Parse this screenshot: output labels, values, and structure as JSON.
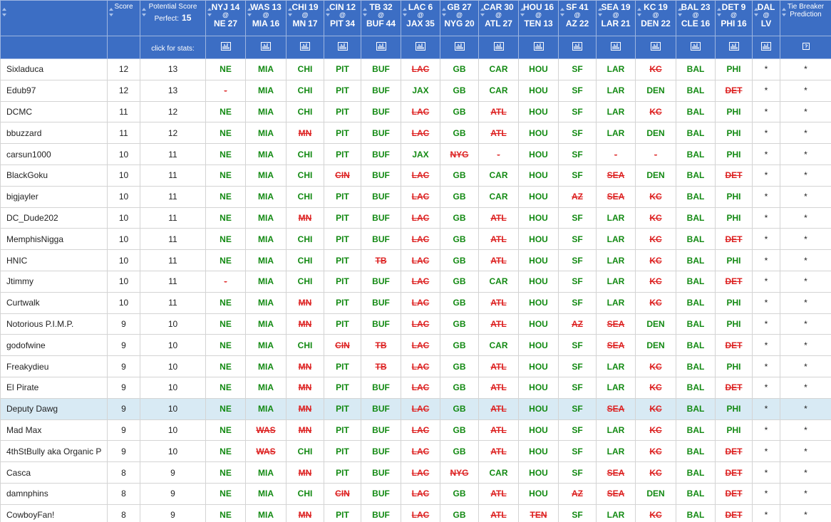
{
  "header": {
    "score_label": "Score",
    "potential_label": "Potential Score",
    "perfect_label": "Perfect:",
    "perfect_value": 15,
    "tiebreaker_label": "Tie Breaker Prediction",
    "stats_label": "click for stats:",
    "at_symbol": "@"
  },
  "games": [
    {
      "away": "NYJ",
      "away_score": 14,
      "home": "NE",
      "home_score": 27
    },
    {
      "away": "WAS",
      "away_score": 13,
      "home": "MIA",
      "home_score": 16
    },
    {
      "away": "CHI",
      "away_score": 19,
      "home": "MN",
      "home_score": 17
    },
    {
      "away": "CIN",
      "away_score": 12,
      "home": "PIT",
      "home_score": 34
    },
    {
      "away": "TB",
      "away_score": 32,
      "home": "BUF",
      "home_score": 44
    },
    {
      "away": "LAC",
      "away_score": 6,
      "home": "JAX",
      "home_score": 35
    },
    {
      "away": "GB",
      "away_score": 27,
      "home": "NYG",
      "home_score": 20
    },
    {
      "away": "CAR",
      "away_score": 30,
      "home": "ATL",
      "home_score": 27
    },
    {
      "away": "HOU",
      "away_score": 16,
      "home": "TEN",
      "home_score": 13
    },
    {
      "away": "SF",
      "away_score": 41,
      "home": "AZ",
      "home_score": 22
    },
    {
      "away": "SEA",
      "away_score": 19,
      "home": "LAR",
      "home_score": 21
    },
    {
      "away": "KC",
      "away_score": 19,
      "home": "DEN",
      "home_score": 22
    },
    {
      "away": "BAL",
      "away_score": 23,
      "home": "CLE",
      "home_score": 16
    },
    {
      "away": "DET",
      "away_score": 9,
      "home": "PHI",
      "home_score": 16
    },
    {
      "away": "DAL",
      "home": "LV"
    }
  ],
  "rows": [
    {
      "name": "Sixladuca",
      "score": 12,
      "potential": 13,
      "picks": [
        "NE",
        "MIA",
        "CHI",
        "PIT",
        "BUF",
        "LAC",
        "GB",
        "CAR",
        "HOU",
        "SF",
        "LAR",
        "KC",
        "BAL",
        "PHI",
        "*"
      ],
      "tiebreaker": "*"
    },
    {
      "name": "Edub97",
      "score": 12,
      "potential": 13,
      "picks": [
        "-",
        "MIA",
        "CHI",
        "PIT",
        "BUF",
        "JAX",
        "GB",
        "CAR",
        "HOU",
        "SF",
        "LAR",
        "DEN",
        "BAL",
        "DET",
        "*"
      ],
      "tiebreaker": "*"
    },
    {
      "name": "DCMC",
      "score": 11,
      "potential": 12,
      "picks": [
        "NE",
        "MIA",
        "CHI",
        "PIT",
        "BUF",
        "LAC",
        "GB",
        "ATL",
        "HOU",
        "SF",
        "LAR",
        "KC",
        "BAL",
        "PHI",
        "*"
      ],
      "tiebreaker": "*"
    },
    {
      "name": "bbuzzard",
      "score": 11,
      "potential": 12,
      "picks": [
        "NE",
        "MIA",
        "MN",
        "PIT",
        "BUF",
        "LAC",
        "GB",
        "ATL",
        "HOU",
        "SF",
        "LAR",
        "DEN",
        "BAL",
        "PHI",
        "*"
      ],
      "tiebreaker": "*"
    },
    {
      "name": "carsun1000",
      "score": 10,
      "potential": 11,
      "picks": [
        "NE",
        "MIA",
        "CHI",
        "PIT",
        "BUF",
        "JAX",
        "NYG",
        "-",
        "HOU",
        "SF",
        "-",
        "-",
        "BAL",
        "PHI",
        "*"
      ],
      "tiebreaker": "*"
    },
    {
      "name": "BlackGoku",
      "score": 10,
      "potential": 11,
      "picks": [
        "NE",
        "MIA",
        "CHI",
        "CIN",
        "BUF",
        "LAC",
        "GB",
        "CAR",
        "HOU",
        "SF",
        "SEA",
        "DEN",
        "BAL",
        "DET",
        "*"
      ],
      "tiebreaker": "*"
    },
    {
      "name": "bigjayler",
      "score": 10,
      "potential": 11,
      "picks": [
        "NE",
        "MIA",
        "CHI",
        "PIT",
        "BUF",
        "LAC",
        "GB",
        "CAR",
        "HOU",
        "AZ",
        "SEA",
        "KC",
        "BAL",
        "PHI",
        "*"
      ],
      "tiebreaker": "*"
    },
    {
      "name": "DC_Dude202",
      "score": 10,
      "potential": 11,
      "picks": [
        "NE",
        "MIA",
        "MN",
        "PIT",
        "BUF",
        "LAC",
        "GB",
        "ATL",
        "HOU",
        "SF",
        "LAR",
        "KC",
        "BAL",
        "PHI",
        "*"
      ],
      "tiebreaker": "*"
    },
    {
      "name": "MemphisNigga",
      "score": 10,
      "potential": 11,
      "picks": [
        "NE",
        "MIA",
        "CHI",
        "PIT",
        "BUF",
        "LAC",
        "GB",
        "ATL",
        "HOU",
        "SF",
        "LAR",
        "KC",
        "BAL",
        "DET",
        "*"
      ],
      "tiebreaker": "*"
    },
    {
      "name": "HNIC",
      "score": 10,
      "potential": 11,
      "picks": [
        "NE",
        "MIA",
        "CHI",
        "PIT",
        "TB",
        "LAC",
        "GB",
        "ATL",
        "HOU",
        "SF",
        "LAR",
        "KC",
        "BAL",
        "PHI",
        "*"
      ],
      "tiebreaker": "*"
    },
    {
      "name": "Jtimmy",
      "score": 10,
      "potential": 11,
      "picks": [
        "-",
        "MIA",
        "CHI",
        "PIT",
        "BUF",
        "LAC",
        "GB",
        "CAR",
        "HOU",
        "SF",
        "LAR",
        "KC",
        "BAL",
        "DET",
        "*"
      ],
      "tiebreaker": "*"
    },
    {
      "name": "Curtwalk",
      "score": 10,
      "potential": 11,
      "picks": [
        "NE",
        "MIA",
        "MN",
        "PIT",
        "BUF",
        "LAC",
        "GB",
        "ATL",
        "HOU",
        "SF",
        "LAR",
        "KC",
        "BAL",
        "PHI",
        "*"
      ],
      "tiebreaker": "*"
    },
    {
      "name": "Notorious P.I.M.P.",
      "score": 9,
      "potential": 10,
      "picks": [
        "NE",
        "MIA",
        "MN",
        "PIT",
        "BUF",
        "LAC",
        "GB",
        "ATL",
        "HOU",
        "AZ",
        "SEA",
        "DEN",
        "BAL",
        "PHI",
        "*"
      ],
      "tiebreaker": "*"
    },
    {
      "name": "godofwine",
      "score": 9,
      "potential": 10,
      "picks": [
        "NE",
        "MIA",
        "CHI",
        "CIN",
        "TB",
        "LAC",
        "GB",
        "CAR",
        "HOU",
        "SF",
        "SEA",
        "DEN",
        "BAL",
        "DET",
        "*"
      ],
      "tiebreaker": "*"
    },
    {
      "name": "Freakydieu",
      "score": 9,
      "potential": 10,
      "picks": [
        "NE",
        "MIA",
        "MN",
        "PIT",
        "TB",
        "LAC",
        "GB",
        "ATL",
        "HOU",
        "SF",
        "LAR",
        "KC",
        "BAL",
        "PHI",
        "*"
      ],
      "tiebreaker": "*"
    },
    {
      "name": "El Pirate",
      "score": 9,
      "potential": 10,
      "picks": [
        "NE",
        "MIA",
        "MN",
        "PIT",
        "BUF",
        "LAC",
        "GB",
        "ATL",
        "HOU",
        "SF",
        "LAR",
        "KC",
        "BAL",
        "DET",
        "*"
      ],
      "tiebreaker": "*"
    },
    {
      "name": "Deputy Dawg",
      "score": 9,
      "potential": 10,
      "picks": [
        "NE",
        "MIA",
        "MN",
        "PIT",
        "BUF",
        "LAC",
        "GB",
        "ATL",
        "HOU",
        "SF",
        "SEA",
        "KC",
        "BAL",
        "PHI",
        "*"
      ],
      "tiebreaker": "*",
      "highlighted": true
    },
    {
      "name": "Mad Max",
      "score": 9,
      "potential": 10,
      "picks": [
        "NE",
        "WAS",
        "MN",
        "PIT",
        "BUF",
        "LAC",
        "GB",
        "ATL",
        "HOU",
        "SF",
        "LAR",
        "KC",
        "BAL",
        "PHI",
        "*"
      ],
      "tiebreaker": "*"
    },
    {
      "name": "4thStBully aka Organic P",
      "score": 9,
      "potential": 10,
      "picks": [
        "NE",
        "WAS",
        "CHI",
        "PIT",
        "BUF",
        "LAC",
        "GB",
        "ATL",
        "HOU",
        "SF",
        "LAR",
        "KC",
        "BAL",
        "DET",
        "*"
      ],
      "tiebreaker": "*"
    },
    {
      "name": "Casca",
      "score": 8,
      "potential": 9,
      "picks": [
        "NE",
        "MIA",
        "MN",
        "PIT",
        "BUF",
        "LAC",
        "NYG",
        "CAR",
        "HOU",
        "SF",
        "SEA",
        "KC",
        "BAL",
        "DET",
        "*"
      ],
      "tiebreaker": "*"
    },
    {
      "name": "damnphins",
      "score": 8,
      "potential": 9,
      "picks": [
        "NE",
        "MIA",
        "CHI",
        "CIN",
        "BUF",
        "LAC",
        "GB",
        "ATL",
        "HOU",
        "AZ",
        "SEA",
        "DEN",
        "BAL",
        "DET",
        "*"
      ],
      "tiebreaker": "*"
    },
    {
      "name": "CowboyFan!",
      "score": 8,
      "potential": 9,
      "picks": [
        "NE",
        "MIA",
        "MN",
        "PIT",
        "BUF",
        "LAC",
        "GB",
        "ATL",
        "TEN",
        "SF",
        "LAR",
        "KC",
        "BAL",
        "DET",
        "*"
      ],
      "tiebreaker": "*"
    }
  ]
}
